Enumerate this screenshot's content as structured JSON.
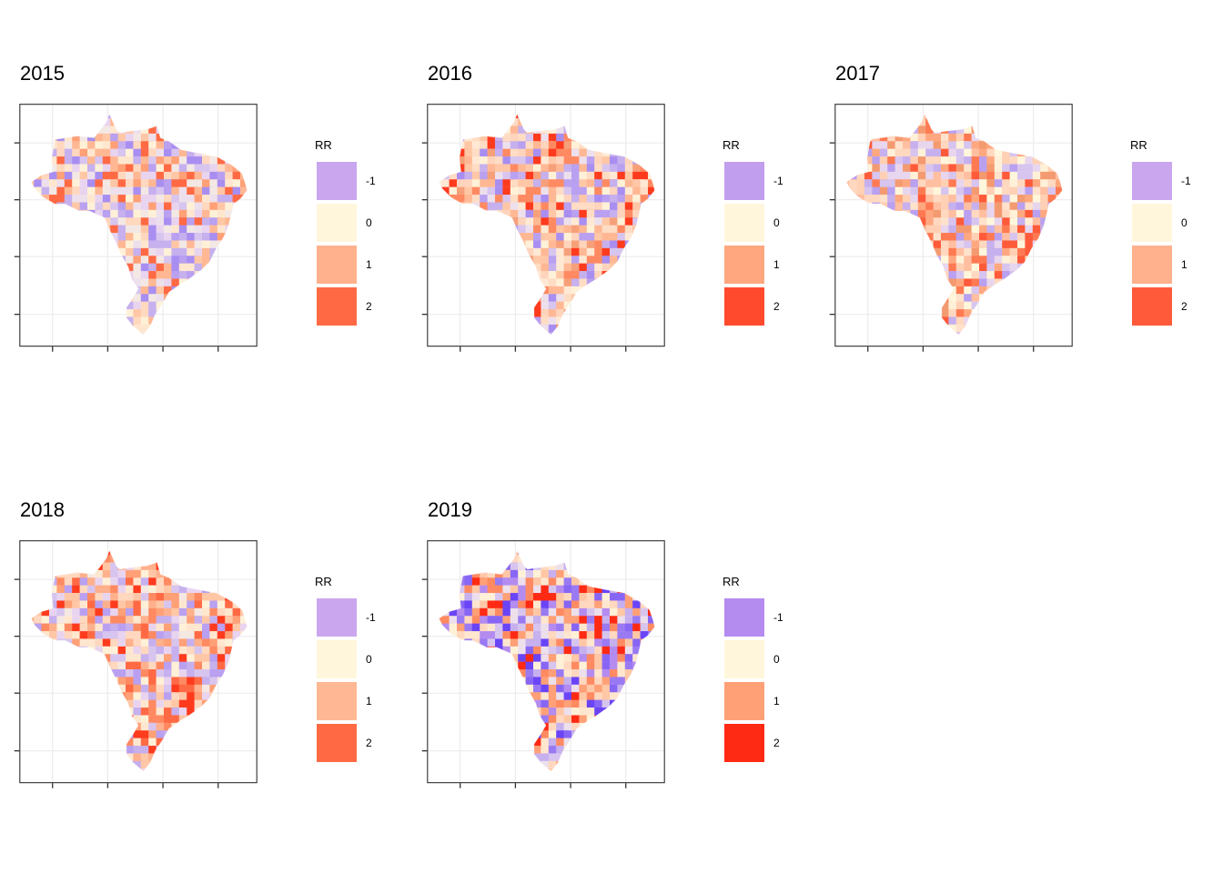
{
  "figure": {
    "legend_title": "RR",
    "legend_labels": [
      "-1",
      "0",
      "1",
      "2"
    ],
    "panels": [
      {
        "year": "2015",
        "key_colors": [
          "#c9a6ee",
          "#fff6dc",
          "#ffb08c",
          "#ff6a44"
        ],
        "region_colors": [
          "#ede0ec",
          "#c6b0ee",
          "#ffd8bf",
          "#fff1d8",
          "#b9a0f0",
          "#ffc7a6",
          "#f3e8e4",
          "#ffe7cf",
          "#d7c5ef",
          "#ffb893",
          "#a98ef1",
          "#ffa077",
          "#ff6a44",
          "#e9d4f0"
        ]
      },
      {
        "year": "2016",
        "key_colors": [
          "#c29eee",
          "#fff6dc",
          "#ffa880",
          "#ff4a2e"
        ],
        "region_colors": [
          "#ffd4bc",
          "#ffe9d4",
          "#b9a0f0",
          "#ffb893",
          "#fff1d8",
          "#ffc7a6",
          "#ede0ec",
          "#a98ef1",
          "#ffdcc4",
          "#f6a07a",
          "#d7c5ef",
          "#ff8a62",
          "#ff3b1e",
          "#c6b0ee"
        ]
      },
      {
        "year": "2017",
        "key_colors": [
          "#c9a6ee",
          "#fff6dc",
          "#ffb08c",
          "#ff5a3a"
        ],
        "region_colors": [
          "#ffd0b4",
          "#ffbfa0",
          "#fff1d8",
          "#ffa880",
          "#ff7a52",
          "#e8d6ee",
          "#ffe2cc",
          "#c6b0ee",
          "#ff5a3a",
          "#ffd8bf",
          "#b9a0f0",
          "#fff6dc",
          "#f49a70",
          "#d7c5ef"
        ]
      },
      {
        "year": "2018",
        "key_colors": [
          "#c9a6ee",
          "#fff6dc",
          "#ffb893",
          "#ff6a44"
        ],
        "region_colors": [
          "#ffd8bf",
          "#c6b0ee",
          "#fff1d8",
          "#ffb08c",
          "#ff8a62",
          "#e9d4f0",
          "#ffe7cf",
          "#b9a0f0",
          "#ff6a44",
          "#ffc7a6",
          "#d7c5ef",
          "#ff3b1e",
          "#f5e8e2",
          "#ffa077"
        ]
      },
      {
        "year": "2019",
        "key_colors": [
          "#b48cf0",
          "#fff6dc",
          "#ffa077",
          "#ff2a14"
        ],
        "region_colors": [
          "#9a7af3",
          "#b48cf0",
          "#fff1d8",
          "#ffc7a6",
          "#ff8a62",
          "#8866f5",
          "#ede0ec",
          "#ffd8bf",
          "#c6b0ee",
          "#ffa077",
          "#6a44f7",
          "#ff2a14",
          "#ffe7cf",
          "#d7c5ef"
        ]
      }
    ]
  }
}
